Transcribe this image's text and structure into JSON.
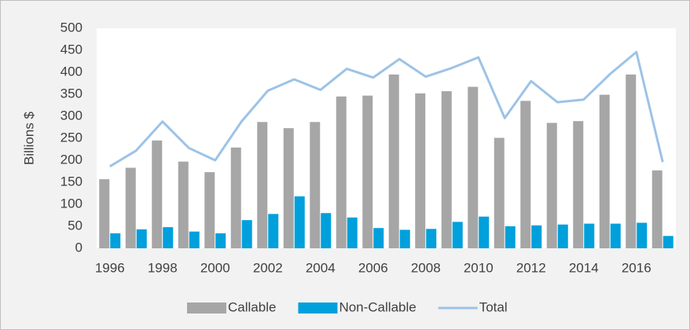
{
  "chart_data": {
    "type": "bar-line",
    "y_label": "Billions $",
    "categories": [
      "1996",
      null,
      "1998",
      null,
      "2000",
      null,
      "2002",
      null,
      "2004",
      null,
      "2006",
      null,
      "2008",
      null,
      "2010",
      null,
      "2012",
      null,
      "2014",
      null,
      "2016",
      null
    ],
    "series": [
      {
        "name": "Callable",
        "type": "bar",
        "color": "#a6a6a6",
        "values": [
          157,
          183,
          245,
          197,
          173,
          229,
          287,
          273,
          287,
          345,
          347,
          395,
          352,
          357,
          367,
          251,
          335,
          285,
          289,
          349,
          395,
          177
        ]
      },
      {
        "name": "Non-Callable",
        "type": "bar",
        "color": "#00a0dc",
        "values": [
          34,
          43,
          48,
          38,
          34,
          64,
          78,
          118,
          80,
          70,
          46,
          42,
          44,
          60,
          72,
          50,
          52,
          54,
          56,
          56,
          58,
          28
        ]
      },
      {
        "name": "Total",
        "type": "line",
        "color": "#9dc3e6",
        "values": [
          186,
          222,
          288,
          228,
          200,
          288,
          358,
          384,
          360,
          408,
          388,
          430,
          390,
          410,
          434,
          296,
          380,
          332,
          338,
          396,
          446,
          196
        ]
      }
    ],
    "ylim": [
      0,
      500
    ],
    "yticks": [
      0,
      50,
      100,
      150,
      200,
      250,
      300,
      350,
      400,
      450,
      500
    ],
    "grid": false,
    "legend": "bottom"
  }
}
